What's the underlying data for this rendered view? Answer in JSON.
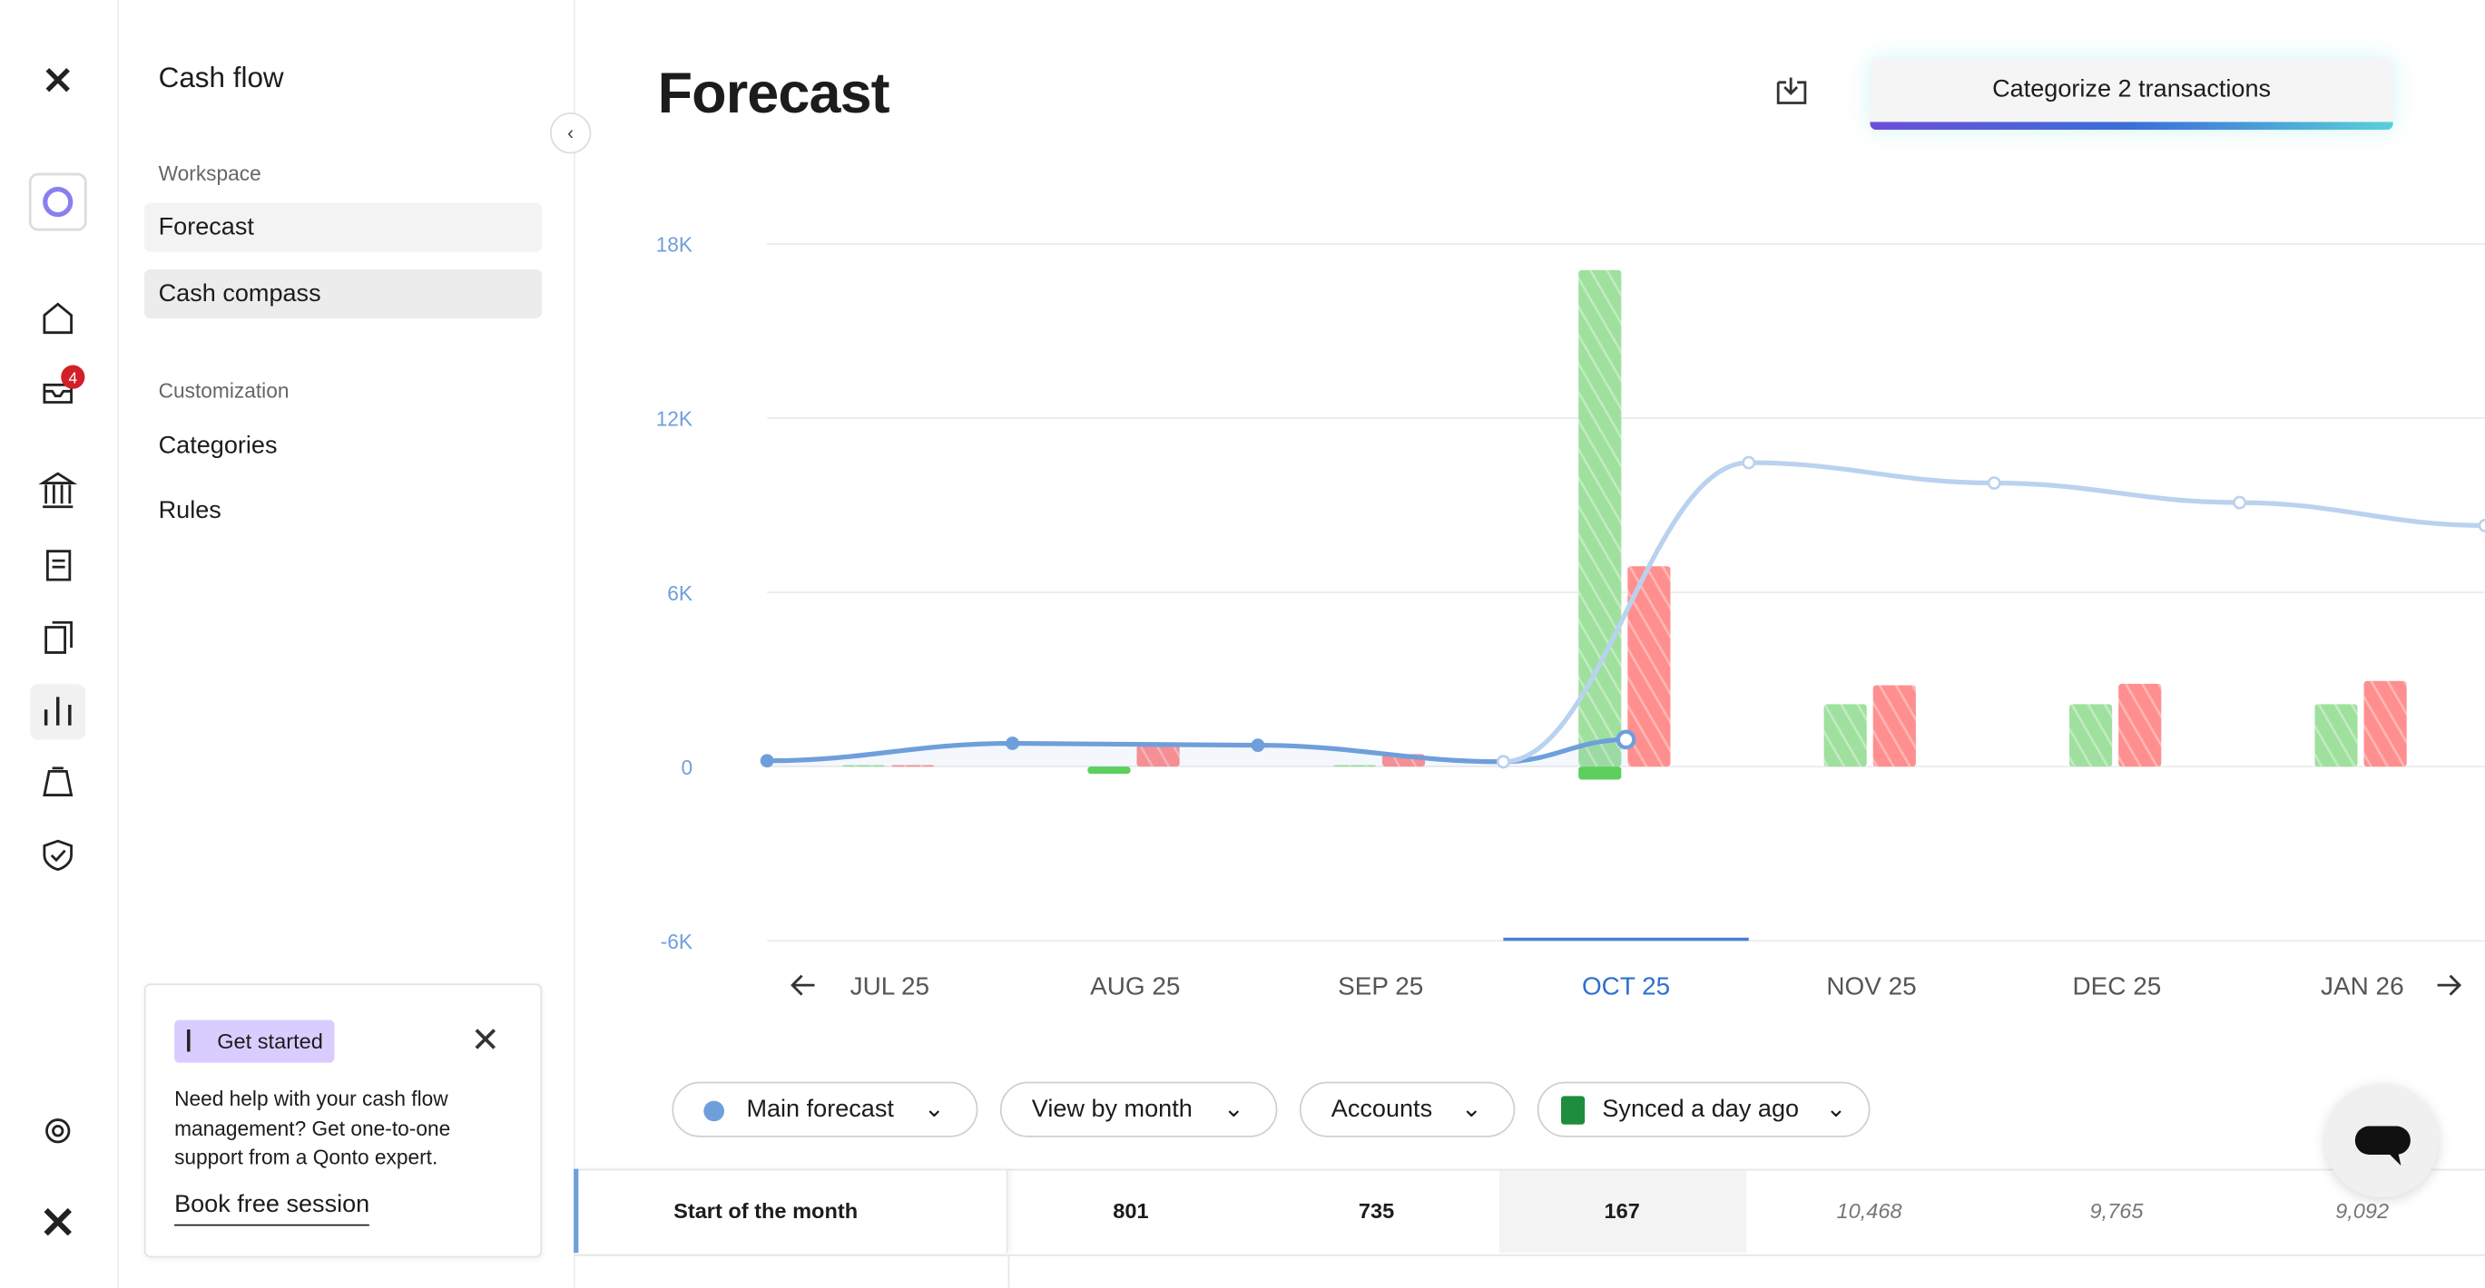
{
  "nav_panel": {
    "title": "Cash flow",
    "sections": [
      {
        "label": "Workspace",
        "items": [
          "Forecast",
          "Cash compass"
        ]
      },
      {
        "label": "Customization",
        "items": [
          "Categories",
          "Rules"
        ]
      }
    ]
  },
  "badge": "4",
  "promo": {
    "tag": "Get started",
    "text": "Need help with your cash flow management? Get one-to-one support from a Qonto expert.",
    "link": "Book free session"
  },
  "header": {
    "title": "Forecast",
    "button": "Categorize 2 transactions"
  },
  "chart_data": {
    "type": "bar",
    "categories": [
      "JUL 25",
      "AUG 25",
      "SEP 25",
      "OCT 25",
      "NOV 25",
      "DEC 25",
      "JAN 26"
    ],
    "selected_category": 3,
    "series": [
      {
        "color": "#9fe09f",
        "hatched": true,
        "values": [
          50,
          null,
          50,
          17100,
          2150,
          2150,
          2150
        ]
      },
      {
        "color": "#5ccf5c",
        "hatched": false,
        "values": [
          null,
          -250,
          null,
          -450,
          null,
          null,
          null
        ]
      },
      {
        "color": "#ff8f8f",
        "hatched": true,
        "values": [
          50,
          750,
          430,
          6900,
          2800,
          2850,
          2950
        ]
      }
    ],
    "lines": [
      {
        "color": "#6f9fdb",
        "x": [
          0,
          1,
          2,
          3,
          3.5
        ],
        "values": [
          200,
          801,
          735,
          167,
          930
        ]
      },
      {
        "color": "#b9d2ef",
        "x": [
          3,
          4,
          5,
          6,
          7
        ],
        "values": [
          167,
          10468,
          9765,
          9092,
          8300
        ]
      }
    ],
    "xlim": [
      0,
      7
    ],
    "ylim": [
      -6000,
      18000
    ],
    "yticks": [
      {
        "value": -6000,
        "label": "-6K"
      },
      0,
      {
        "value": 6000,
        "label": "6K"
      },
      {
        "value": 12000,
        "label": "12K"
      },
      {
        "value": 18000,
        "label": "18K"
      }
    ],
    "grid": true
  },
  "filters": [
    "Main forecast",
    "View by month",
    "Accounts",
    "Synced a day ago"
  ],
  "table": {
    "row_label": "Start of the month",
    "values": [
      "801",
      "735",
      "167",
      "10,468",
      "9,765",
      "9,092"
    ]
  }
}
